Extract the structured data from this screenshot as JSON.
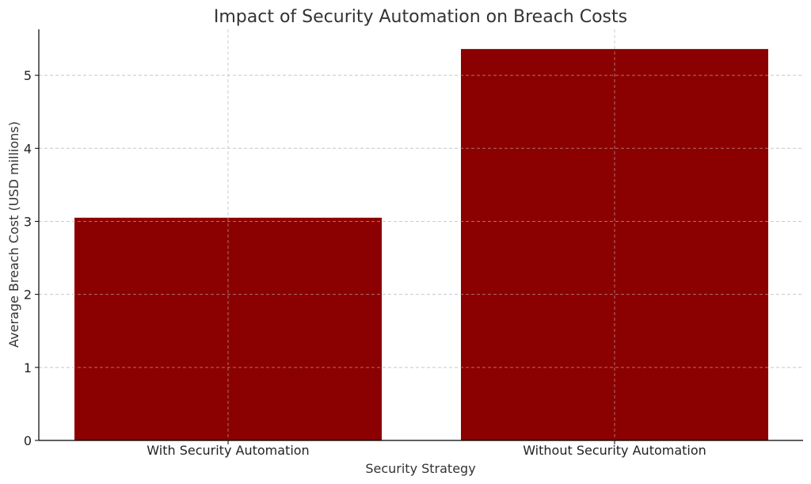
{
  "chart_data": {
    "type": "bar",
    "title": "Impact of Security Automation on Breach Costs",
    "xlabel": "Security Strategy",
    "ylabel": "Average Breach Cost (USD millions)",
    "categories": [
      "With Security Automation",
      "Without Security Automation"
    ],
    "values": [
      3.05,
      5.36
    ],
    "ylim": [
      0,
      5.63
    ],
    "yticks": [
      0,
      1,
      2,
      3,
      4,
      5
    ],
    "grid": true,
    "colors": {
      "bar": "#8B0000"
    }
  }
}
